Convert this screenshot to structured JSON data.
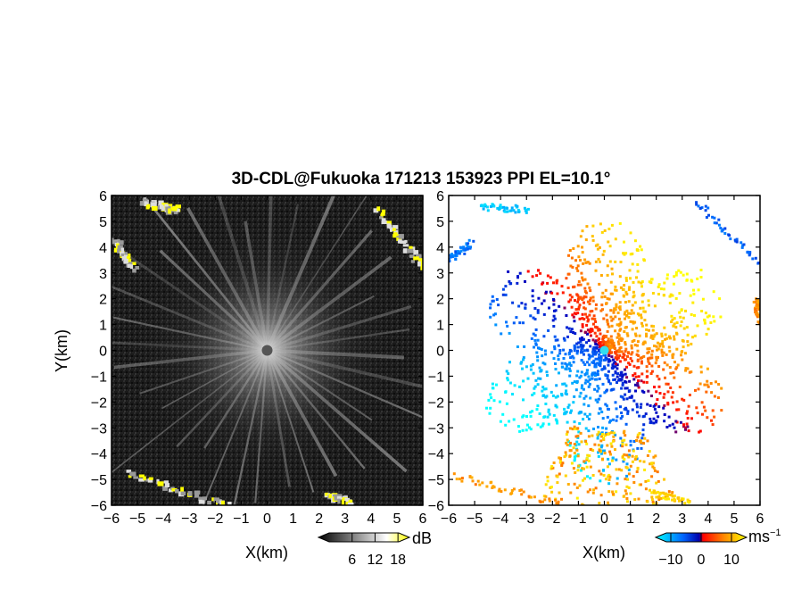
{
  "figure": {
    "title": "3D-CDL@Fukuoka 171213 153923 PPI EL=10.1°"
  },
  "chart_data": [
    {
      "type": "heatmap",
      "panel": "reflectivity",
      "xlabel": "X(km)",
      "ylabel": "Y(km)",
      "xlim": [
        -6,
        6
      ],
      "ylim": [
        -6,
        6
      ],
      "xticks": [
        "−6",
        "−5",
        "−4",
        "−3",
        "−2",
        "−1",
        "0",
        "1",
        "2",
        "3",
        "4",
        "5",
        "6"
      ],
      "yticks": [
        "6",
        "5",
        "4",
        "3",
        "2",
        "1",
        "0",
        "−1",
        "−2",
        "−3",
        "−4",
        "−5",
        "−6"
      ],
      "colormap": [
        "#000000",
        "#ffffff",
        "#ffff00"
      ],
      "colorbar": {
        "unit": "dB",
        "ticks": [
          6,
          12,
          18
        ],
        "tick_labels": [
          "6",
          "12",
          "18"
        ],
        "range": [
          0,
          21
        ]
      },
      "features": {
        "num_rays": 36,
        "cloud_echoes": [
          {
            "x": [
              -4.8,
              -3.5
            ],
            "y": [
              5.8,
              5.5
            ]
          },
          {
            "x": [
              4.2,
              6.0
            ],
            "y": [
              5.5,
              3.2
            ]
          },
          {
            "x": [
              -6.0,
              -5.2
            ],
            "y": [
              4.4,
              3.2
            ]
          },
          {
            "x": [
              -5.5,
              -1.5
            ],
            "y": [
              -4.7,
              -6.0
            ]
          },
          {
            "x": [
              2.3,
              3.2
            ],
            "y": [
              -5.5,
              -5.9
            ]
          }
        ]
      }
    },
    {
      "type": "heatmap",
      "panel": "doppler_velocity",
      "xlabel": "X(km)",
      "ylabel": "",
      "xlim": [
        -6,
        6
      ],
      "ylim": [
        -6,
        6
      ],
      "xticks": [
        "−6",
        "−5",
        "−4",
        "−3",
        "−2",
        "−1",
        "0",
        "1",
        "2",
        "3",
        "4",
        "5",
        "6"
      ],
      "yticks": [
        "6",
        "5",
        "4",
        "3",
        "2",
        "1",
        "0",
        "−1",
        "−2",
        "−3",
        "−4",
        "−5",
        "−6"
      ],
      "colormap": [
        "#00ffff",
        "#0055ff",
        "#0000aa",
        "#ff0000",
        "#ff8800",
        "#ffff00"
      ],
      "colorbar": {
        "unit": "ms",
        "unit_exponent": "−1",
        "ticks": [
          -10,
          0,
          10
        ],
        "tick_labels": [
          "−10",
          "0",
          "10"
        ],
        "range": [
          -15,
          15
        ]
      },
      "features": {
        "approaching_sector": "northwest",
        "receding_sector": "southeast",
        "zero_velocity_center": [
          0,
          0
        ]
      }
    }
  ]
}
